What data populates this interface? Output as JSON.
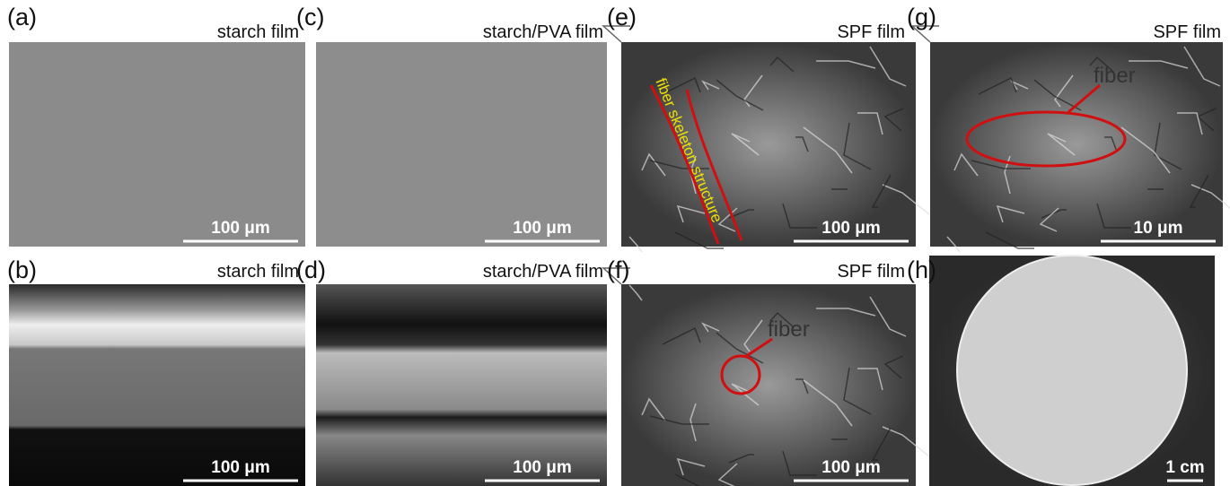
{
  "panels": [
    {
      "label": "(a)",
      "title": "starch film",
      "scale_bar": "100 μm"
    },
    {
      "label": "(b)",
      "title": "starch film",
      "scale_bar": "100 μm"
    },
    {
      "label": "(c)",
      "title": "starch/PVA film",
      "scale_bar": "100 μm"
    },
    {
      "label": "(d)",
      "title": "starch/PVA film",
      "scale_bar": "100 μm"
    },
    {
      "label": "(e)",
      "title": "SPF film",
      "scale_bar": "100 μm",
      "annotation": "fiber skeleton structure"
    },
    {
      "label": "(f)",
      "title": "SPF film",
      "scale_bar": "100 μm",
      "annotation": "fiber"
    },
    {
      "label": "(g)",
      "title": "SPF film",
      "scale_bar": "10 μm",
      "annotation": "fiber"
    },
    {
      "label": "(h)",
      "scale_bar": "1 cm"
    }
  ]
}
